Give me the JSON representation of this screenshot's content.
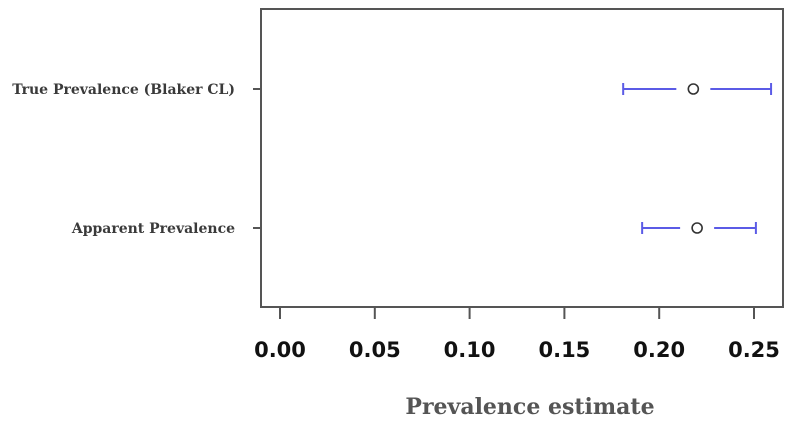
{
  "chart_data": {
    "type": "interval",
    "title": "",
    "xlabel": "Prevalence estimate",
    "ylabel": "",
    "xlim": [
      -0.012,
      0.265
    ],
    "xticks": [
      0,
      0.05,
      0.1,
      0.15,
      0.2,
      0.25
    ],
    "xtick_labels": [
      "0.00",
      "0.05",
      "0.10",
      "0.15",
      "0.20",
      "0.25"
    ],
    "categories": [
      "True Prevalence (Blaker CL)",
      "Apparent Prevalence"
    ],
    "points": [
      {
        "category": "True Prevalence (Blaker CL)",
        "estimate": 0.218,
        "lower": 0.181,
        "upper": 0.259
      },
      {
        "category": "Apparent Prevalence",
        "estimate": 0.22,
        "lower": 0.191,
        "upper": 0.251
      }
    ],
    "grid": false,
    "colors": {
      "interval": "#5b5be6",
      "point": "#333333",
      "frame": "#555555"
    }
  }
}
